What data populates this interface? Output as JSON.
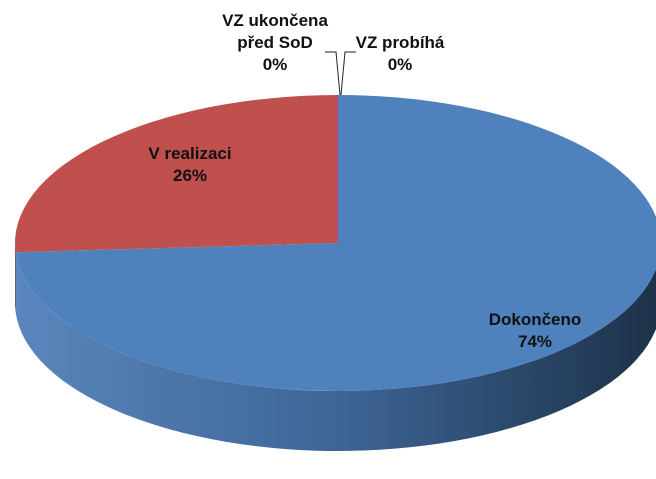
{
  "chart_data": {
    "type": "pie",
    "categories": [
      "Dokončeno",
      "V realizaci",
      "VZ ukončena před SoD",
      "VZ probíhá"
    ],
    "values": [
      74,
      26,
      0,
      0
    ],
    "value_labels": [
      "74%",
      "26%",
      "0%",
      "0%"
    ],
    "colors": [
      "#4f81bd",
      "#c0504d",
      "#9bbb59",
      "#8064a2"
    ]
  }
}
